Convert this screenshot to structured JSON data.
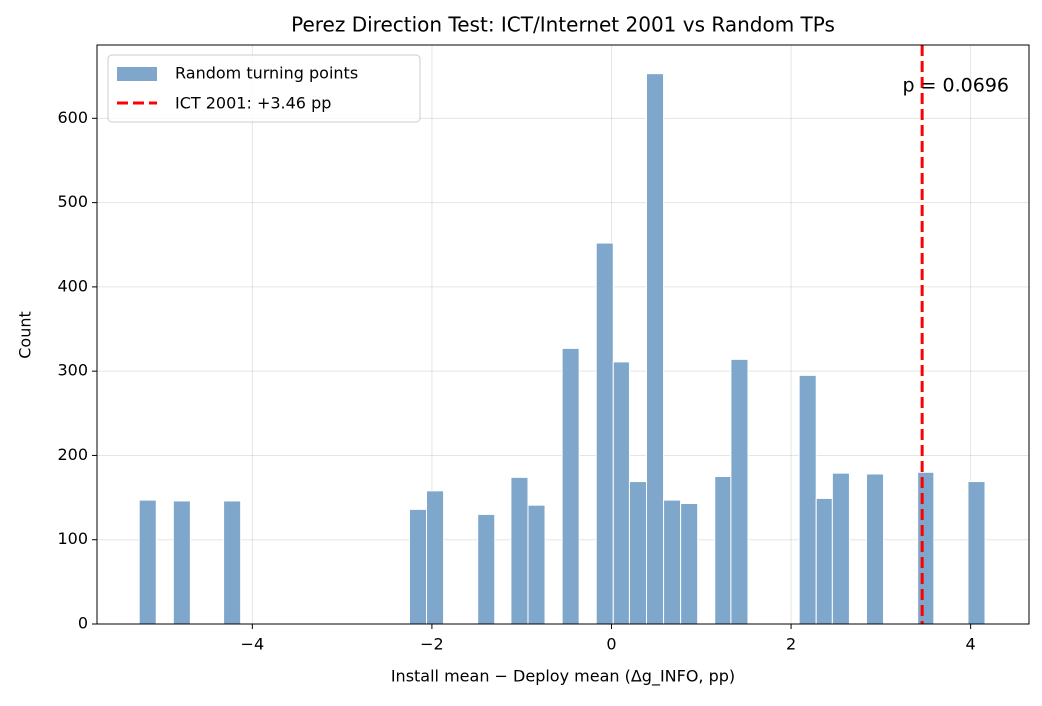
{
  "chart_data": {
    "type": "histogram",
    "title": "Perez Direction Test: ICT/Internet 2001 vs Random TPs",
    "x_label": "Install mean − Deploy mean (Δg_INFO, pp)",
    "y_label": "Count",
    "bins": [
      -5.26,
      -5.07,
      -4.88,
      -4.69,
      -4.51,
      -4.32,
      -4.13,
      -3.94,
      -3.75,
      -3.56,
      -3.38,
      -3.19,
      -3.0,
      -2.81,
      -2.62,
      -2.43,
      -2.25,
      -2.06,
      -1.87,
      -1.68,
      -1.49,
      -1.3,
      -1.12,
      -0.93,
      -0.74,
      -0.55,
      -0.36,
      -0.17,
      0.02,
      0.2,
      0.39,
      0.58,
      0.77,
      0.96,
      1.15,
      1.33,
      1.52,
      1.71,
      1.9,
      2.09,
      2.28,
      2.46,
      2.65,
      2.84,
      3.03,
      3.22,
      3.41,
      3.59,
      3.78,
      3.97,
      4.16
    ],
    "series": [
      {
        "name": "Random turning points",
        "color": "#7ea7cb",
        "values": [
          147,
          0,
          146,
          0,
          0,
          146,
          0,
          0,
          0,
          0,
          0,
          0,
          0,
          0,
          0,
          0,
          136,
          158,
          0,
          0,
          130,
          0,
          174,
          141,
          0,
          327,
          0,
          452,
          311,
          169,
          653,
          147,
          143,
          0,
          175,
          314,
          0,
          0,
          0,
          295,
          149,
          179,
          0,
          178,
          0,
          0,
          180,
          0,
          0,
          169
        ]
      }
    ],
    "vline": {
      "value": 3.46,
      "label": "ICT 2001: +3.46 pp",
      "color": "#ff0000"
    },
    "annotation": "p = 0.0696",
    "xlim": [
      -5.73,
      4.65
    ],
    "ylim": [
      0,
      687
    ],
    "xticks": [
      {
        "value": -4,
        "label": "−4"
      },
      {
        "value": -2,
        "label": "−2"
      },
      0,
      2,
      4
    ],
    "yticks": [
      0,
      100,
      200,
      300,
      400,
      500,
      600
    ],
    "grid": true,
    "legend": "upper left"
  }
}
